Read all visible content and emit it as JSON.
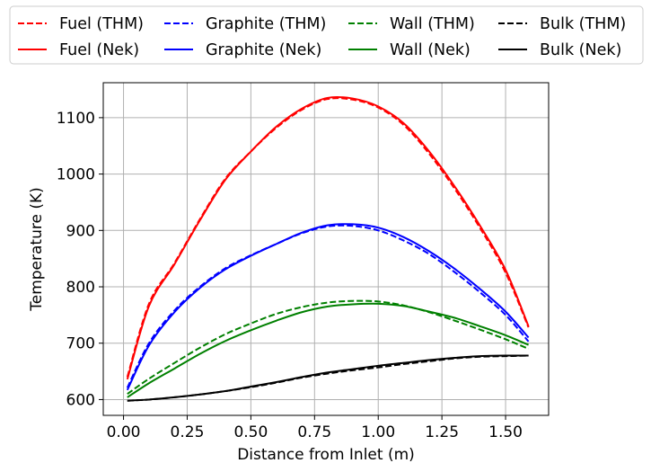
{
  "chart_data": {
    "type": "line",
    "xlabel": "Distance from Inlet (m)",
    "ylabel": "Temperature (K)",
    "xlim": [
      -0.0795,
      1.669
    ],
    "ylim": [
      572,
      1162
    ],
    "xticks": [
      0.0,
      0.25,
      0.5,
      0.75,
      1.0,
      1.25,
      1.5
    ],
    "xtick_labels": [
      "0.00",
      "0.25",
      "0.50",
      "0.75",
      "1.00",
      "1.25",
      "1.50"
    ],
    "yticks": [
      600,
      700,
      800,
      900,
      1000,
      1100
    ],
    "ytick_labels": [
      "600",
      "700",
      "800",
      "900",
      "1000",
      "1100"
    ],
    "grid": true,
    "legend_position": "top, above plot",
    "x": [
      0.015,
      0.1,
      0.2,
      0.3,
      0.4,
      0.5,
      0.6,
      0.7,
      0.8,
      0.9,
      1.0,
      1.1,
      1.2,
      1.3,
      1.4,
      1.5,
      1.59
    ],
    "series": [
      {
        "name": "Fuel (THM)",
        "color": "#ff0000",
        "dash": true,
        "values": [
          640,
          770,
          842,
          920,
          992,
          1040,
          1082,
          1114,
          1133,
          1132,
          1118,
          1087,
          1036,
          974,
          904,
          825,
          728
        ]
      },
      {
        "name": "Fuel (Nek)",
        "color": "#ff0000",
        "dash": false,
        "values": [
          636,
          766,
          840,
          918,
          990,
          1040,
          1084,
          1116,
          1135,
          1134,
          1120,
          1090,
          1040,
          978,
          908,
          830,
          730
        ]
      },
      {
        "name": "Graphite (THM)",
        "color": "#0000ff",
        "dash": true,
        "values": [
          621,
          700,
          758,
          800,
          833,
          856,
          876,
          895,
          907,
          908,
          900,
          882,
          858,
          826,
          790,
          750,
          703
        ]
      },
      {
        "name": "Graphite (Nek)",
        "color": "#0000ff",
        "dash": false,
        "values": [
          617,
          696,
          755,
          798,
          831,
          855,
          876,
          896,
          909,
          911,
          905,
          888,
          863,
          832,
          796,
          756,
          710
        ]
      },
      {
        "name": "Wall (THM)",
        "color": "#008000",
        "dash": true,
        "values": [
          610,
          637,
          665,
          692,
          716,
          735,
          752,
          764,
          772,
          775,
          774,
          767,
          755,
          740,
          724,
          707,
          690
        ]
      },
      {
        "name": "Wall (Nek)",
        "color": "#008000",
        "dash": false,
        "values": [
          604,
          629,
          655,
          681,
          704,
          723,
          740,
          755,
          765,
          769,
          770,
          766,
          756,
          745,
          730,
          714,
          697
        ]
      },
      {
        "name": "Bulk (THM)",
        "color": "#000000",
        "dash": true,
        "values": [
          598,
          600,
          604,
          609,
          615,
          622,
          630,
          639,
          646,
          652,
          657,
          663,
          668,
          673,
          676,
          677,
          678
        ]
      },
      {
        "name": "Bulk (Nek)",
        "color": "#000000",
        "dash": false,
        "values": [
          598,
          600,
          604,
          609,
          615,
          623,
          631,
          640,
          648,
          654,
          660,
          665,
          670,
          674,
          677,
          678,
          678
        ]
      }
    ]
  }
}
